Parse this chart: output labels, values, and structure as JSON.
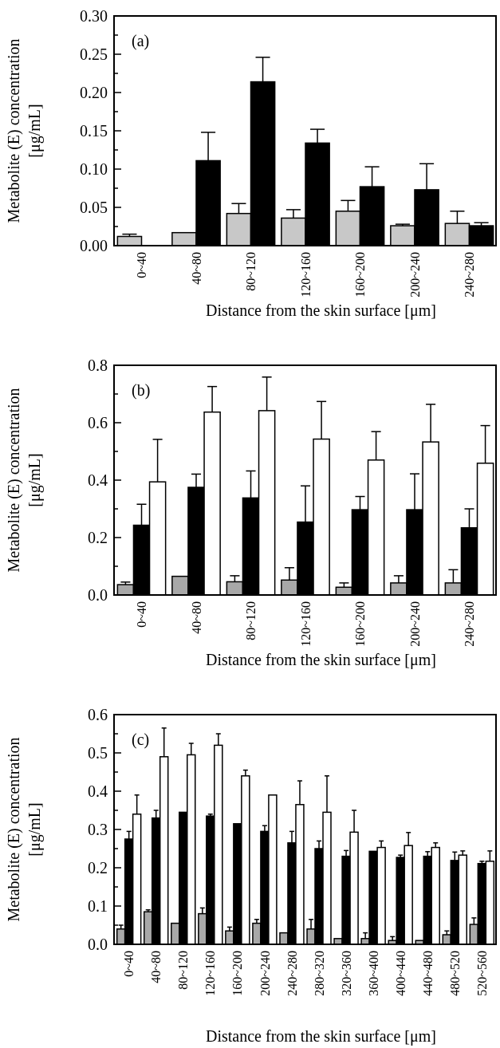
{
  "chart_data": [
    {
      "type": "bar",
      "xlabel": "Distance from the skin surface [μm]",
      "ylabel": "Metabolite (E) concentration\n[μg/mL]",
      "annotations": [
        "(a)"
      ],
      "categories": [
        "0~40",
        "40~80",
        "80~120",
        "120~160",
        "160~200",
        "200~240",
        "240~280"
      ],
      "ylim": [
        0,
        0.3
      ],
      "yticks": [
        {
          "value": 0,
          "label": "0.00"
        },
        {
          "value": 0.025,
          "label": null
        },
        {
          "value": 0.05,
          "label": "0.05"
        },
        {
          "value": 0.075,
          "label": null
        },
        {
          "value": 0.1,
          "label": "0.10"
        },
        {
          "value": 0.125,
          "label": null
        },
        {
          "value": 0.15,
          "label": "0.15"
        },
        {
          "value": 0.175,
          "label": null
        },
        {
          "value": 0.2,
          "label": "0.20"
        },
        {
          "value": 0.225,
          "label": null
        },
        {
          "value": 0.25,
          "label": "0.25"
        },
        {
          "value": 0.275,
          "label": null
        },
        {
          "value": 0.3,
          "label": "0.30"
        }
      ],
      "series": [
        {
          "color": "#c8c8c8",
          "values": [
            0.012,
            0.017,
            0.042,
            0.036,
            0.045,
            0.026,
            0.029
          ],
          "errors": [
            [
              0.012,
              0.015
            ],
            null,
            [
              0.042,
              0.055
            ],
            [
              0.036,
              0.047
            ],
            [
              0.045,
              0.059
            ],
            [
              0.026,
              0.028
            ],
            [
              0.029,
              0.045
            ]
          ]
        },
        {
          "color": "#000000",
          "values": [
            null,
            0.111,
            0.214,
            0.134,
            0.077,
            0.073,
            0.026
          ],
          "errors": [
            null,
            [
              0.111,
              0.148
            ],
            [
              0.214,
              0.246
            ],
            [
              0.134,
              0.152
            ],
            [
              0.077,
              0.103
            ],
            [
              0.073,
              0.107
            ],
            [
              0.026,
              0.03
            ]
          ]
        }
      ]
    },
    {
      "type": "bar",
      "xlabel": "Distance from the skin surface [μm]",
      "ylabel": "Metabolite (E) concentration\n[μg/mL]",
      "annotations": [
        "(b)"
      ],
      "categories": [
        "0~40",
        "40~80",
        "80~120",
        "120~160",
        "160~200",
        "200~240",
        "240~280"
      ],
      "ylim": [
        0,
        0.8
      ],
      "yticks": [
        {
          "value": 0,
          "label": "0.0"
        },
        {
          "value": 0.1,
          "label": null
        },
        {
          "value": 0.2,
          "label": "0.2"
        },
        {
          "value": 0.3,
          "label": null
        },
        {
          "value": 0.4,
          "label": "0.4"
        },
        {
          "value": 0.5,
          "label": null
        },
        {
          "value": 0.6,
          "label": "0.6"
        },
        {
          "value": 0.7,
          "label": null
        },
        {
          "value": 0.8,
          "label": "0.8"
        }
      ],
      "series": [
        {
          "color": "#a8a8a8",
          "values": [
            0.036,
            0.065,
            0.046,
            0.052,
            0.027,
            0.042,
            0.042
          ],
          "errors": [
            [
              0.036,
              0.045
            ],
            null,
            [
              0.046,
              0.067
            ],
            [
              0.052,
              0.095
            ],
            [
              0.027,
              0.042
            ],
            [
              0.042,
              0.067
            ],
            [
              0.042,
              0.088
            ]
          ]
        },
        {
          "color": "#000000",
          "values": [
            0.243,
            0.375,
            0.338,
            0.254,
            0.297,
            0.297,
            0.234
          ],
          "errors": [
            [
              0.243,
              0.316
            ],
            [
              0.375,
              0.421
            ],
            [
              0.338,
              0.432
            ],
            [
              0.254,
              0.38
            ],
            [
              0.297,
              0.343
            ],
            [
              0.297,
              0.422
            ],
            [
              0.234,
              0.3
            ]
          ]
        },
        {
          "color": "#ffffff",
          "values": [
            0.394,
            0.637,
            0.642,
            0.543,
            0.47,
            0.533,
            0.459
          ],
          "errors": [
            [
              0.394,
              0.542
            ],
            [
              0.637,
              0.726
            ],
            [
              0.642,
              0.759
            ],
            [
              0.543,
              0.674
            ],
            [
              0.47,
              0.569
            ],
            [
              0.533,
              0.664
            ],
            [
              0.459,
              0.59
            ]
          ]
        }
      ]
    },
    {
      "type": "bar",
      "xlabel": "Distance from the skin surface [μm]",
      "ylabel": "Metabolite (E) concentration\n[μg/mL]",
      "annotations": [
        "(c)"
      ],
      "categories": [
        "0~40",
        "40~80",
        "80~120",
        "120~160",
        "160~200",
        "200~240",
        "240~280",
        "280~320",
        "320~360",
        "360~400",
        "400~440",
        "440~480",
        "480~520",
        "520~560"
      ],
      "ylim": [
        0,
        0.6
      ],
      "yticks": [
        {
          "value": 0,
          "label": "0.0"
        },
        {
          "value": 0.05,
          "label": null
        },
        {
          "value": 0.1,
          "label": "0.1"
        },
        {
          "value": 0.15,
          "label": null
        },
        {
          "value": 0.2,
          "label": "0.2"
        },
        {
          "value": 0.25,
          "label": null
        },
        {
          "value": 0.3,
          "label": "0.3"
        },
        {
          "value": 0.35,
          "label": null
        },
        {
          "value": 0.4,
          "label": "0.4"
        },
        {
          "value": 0.45,
          "label": null
        },
        {
          "value": 0.5,
          "label": "0.5"
        },
        {
          "value": 0.55,
          "label": null
        },
        {
          "value": 0.6,
          "label": "0.6"
        }
      ],
      "series": [
        {
          "color": "#a8a8a8",
          "values": [
            0.04,
            0.085,
            0.055,
            0.08,
            0.035,
            0.055,
            0.03,
            0.04,
            0.015,
            0.015,
            0.01,
            0.01,
            0.025,
            0.052
          ],
          "errors": [
            [
              0.04,
              0.05
            ],
            [
              0.085,
              0.09
            ],
            null,
            [
              0.08,
              0.095
            ],
            [
              0.035,
              0.045
            ],
            [
              0.055,
              0.065
            ],
            null,
            [
              0.04,
              0.065
            ],
            null,
            [
              0.015,
              0.03
            ],
            [
              0.01,
              0.02
            ],
            null,
            [
              0.025,
              0.035
            ],
            [
              0.052,
              0.069
            ]
          ]
        },
        {
          "color": "#000000",
          "values": [
            0.275,
            0.33,
            0.345,
            0.335,
            0.315,
            0.295,
            0.265,
            0.25,
            0.23,
            0.243,
            0.227,
            0.23,
            0.219,
            0.211
          ],
          "errors": [
            [
              0.275,
              0.295
            ],
            [
              0.33,
              0.35
            ],
            null,
            [
              0.335,
              0.34
            ],
            null,
            [
              0.295,
              0.31
            ],
            [
              0.265,
              0.295
            ],
            [
              0.25,
              0.27
            ],
            [
              0.23,
              0.245
            ],
            null,
            [
              0.227,
              0.233
            ],
            [
              0.23,
              0.242
            ],
            [
              0.219,
              0.241
            ],
            [
              0.211,
              0.217
            ]
          ]
        },
        {
          "color": "#ffffff",
          "values": [
            0.34,
            0.49,
            0.495,
            0.52,
            0.44,
            0.39,
            0.365,
            0.345,
            0.293,
            0.253,
            0.258,
            0.253,
            0.233,
            0.217
          ],
          "errors": [
            [
              0.34,
              0.39
            ],
            [
              0.49,
              0.565
            ],
            [
              0.495,
              0.525
            ],
            [
              0.52,
              0.55
            ],
            [
              0.44,
              0.455
            ],
            null,
            [
              0.365,
              0.427
            ],
            [
              0.345,
              0.44
            ],
            [
              0.293,
              0.35
            ],
            [
              0.253,
              0.27
            ],
            [
              0.258,
              0.292
            ],
            [
              0.253,
              0.265
            ],
            [
              0.233,
              0.244
            ],
            [
              0.217,
              0.244
            ]
          ]
        }
      ]
    }
  ]
}
